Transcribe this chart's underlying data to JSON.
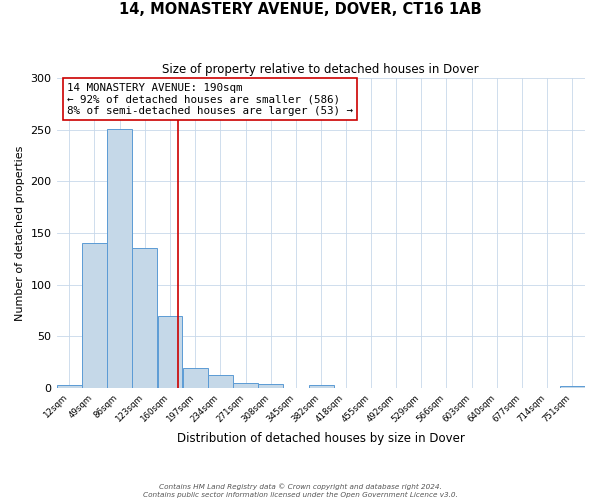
{
  "title": "14, MONASTERY AVENUE, DOVER, CT16 1AB",
  "subtitle": "Size of property relative to detached houses in Dover",
  "xlabel": "Distribution of detached houses by size in Dover",
  "ylabel": "Number of detached properties",
  "bar_edges": [
    12,
    49,
    86,
    123,
    160,
    197,
    234,
    271,
    308,
    345,
    382,
    418,
    455,
    492,
    529,
    566,
    603,
    640,
    677,
    714,
    751
  ],
  "bar_heights": [
    3,
    140,
    251,
    135,
    70,
    19,
    12,
    5,
    4,
    0,
    3,
    0,
    0,
    0,
    0,
    0,
    0,
    0,
    0,
    0,
    2
  ],
  "bar_color": "#c5d8e8",
  "bar_edge_color": "#5b9bd5",
  "vline_x": 190,
  "vline_color": "#cc0000",
  "annotation_line0": "14 MONASTERY AVENUE: 190sqm",
  "annotation_line1": "← 92% of detached houses are smaller (586)",
  "annotation_line2": "8% of semi-detached houses are larger (53) →",
  "annotation_box_color": "#ffffff",
  "annotation_box_edge_color": "#cc0000",
  "ylim": [
    0,
    300
  ],
  "yticks": [
    0,
    50,
    100,
    150,
    200,
    250,
    300
  ],
  "footer1": "Contains HM Land Registry data © Crown copyright and database right 2024.",
  "footer2": "Contains public sector information licensed under the Open Government Licence v3.0."
}
